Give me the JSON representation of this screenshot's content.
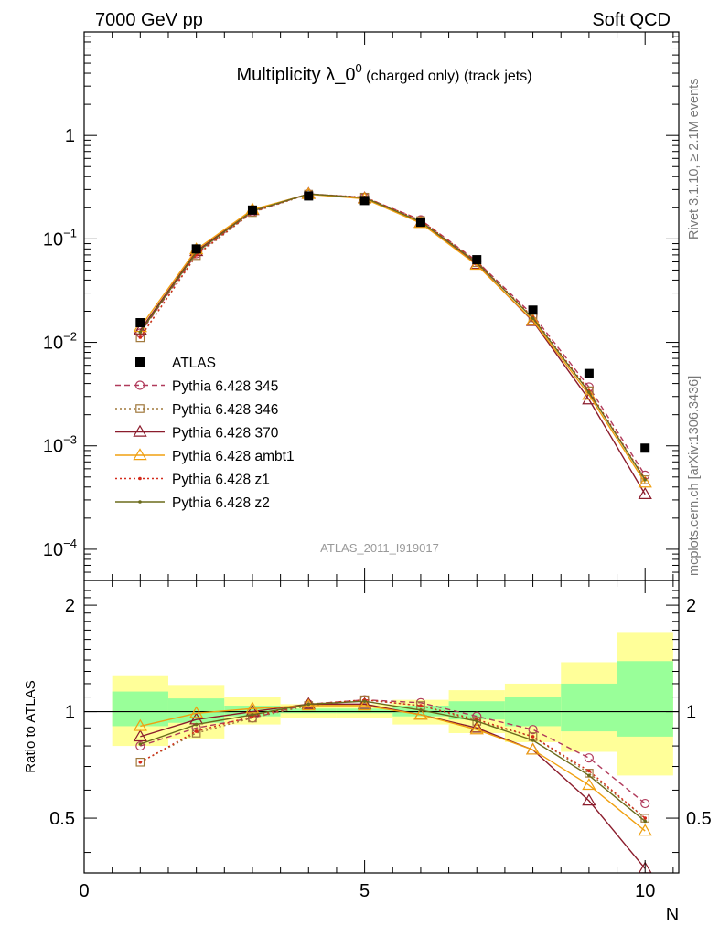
{
  "header": {
    "left": "7000 GeV pp",
    "right": "Soft QCD"
  },
  "side": {
    "rivet": "Rivet 3.1.10, ≥ 2.1M events",
    "mcplots": "mcplots.cern.ch [arXiv:1306.3436]"
  },
  "chart_data": [
    {
      "type": "line",
      "title": "Multiplicity λ_0",
      "title_sup": "0",
      "title_suffix": " (charged only) (track jets)",
      "watermark": "ATLAS_2011_I919017",
      "xlim": [
        0,
        10.6
      ],
      "ylim": [
        5e-05,
        10
      ],
      "yscale": "log",
      "ytick_labels": [
        {
          "base": "10",
          "exp": "−4",
          "value": 0.0001
        },
        {
          "base": "10",
          "exp": "−3",
          "value": 0.001
        },
        {
          "base": "10",
          "exp": "−2",
          "value": 0.01
        },
        {
          "base": "10",
          "exp": "−1",
          "value": 0.1
        },
        {
          "base": "1",
          "exp": "",
          "value": 1
        }
      ],
      "legend_position": "lower-left",
      "data": {
        "name": "ATLAS",
        "x": [
          1,
          2,
          3,
          4,
          5,
          6,
          7,
          8,
          9,
          10
        ],
        "y": [
          0.0155,
          0.08,
          0.19,
          0.26,
          0.235,
          0.145,
          0.063,
          0.0205,
          0.005,
          0.00095
        ]
      },
      "series": [
        {
          "name": "Pythia 6.428 345",
          "color": "#b03a5b",
          "dash": "dashed",
          "marker": "circle",
          "x": [
            1,
            2,
            3,
            4,
            5,
            6,
            7,
            8,
            9,
            10
          ],
          "y": [
            0.0123,
            0.072,
            0.182,
            0.272,
            0.252,
            0.153,
            0.061,
            0.0183,
            0.0037,
            0.00052
          ]
        },
        {
          "name": "Pythia 6.428 346",
          "color": "#a0783c",
          "dash": "dotted",
          "marker": "square",
          "x": [
            1,
            2,
            3,
            4,
            5,
            6,
            7,
            8,
            9,
            10
          ],
          "y": [
            0.0111,
            0.069,
            0.18,
            0.27,
            0.253,
            0.15,
            0.059,
            0.0173,
            0.0034,
            0.00047
          ]
        },
        {
          "name": "Pythia 6.428 370",
          "color": "#8b1c2c",
          "dash": "solid",
          "marker": "triangle",
          "x": [
            1,
            2,
            3,
            4,
            5,
            6,
            7,
            8,
            9,
            10
          ],
          "y": [
            0.0131,
            0.076,
            0.189,
            0.272,
            0.247,
            0.143,
            0.057,
            0.016,
            0.0028,
            0.00034
          ]
        },
        {
          "name": "Pythia 6.428 ambt1",
          "color": "#f0a010",
          "dash": "solid",
          "marker": "triangle",
          "x": [
            1,
            2,
            3,
            4,
            5,
            6,
            7,
            8,
            9,
            10
          ],
          "y": [
            0.014,
            0.079,
            0.192,
            0.27,
            0.244,
            0.142,
            0.056,
            0.0163,
            0.0031,
            0.00044
          ]
        },
        {
          "name": "Pythia 6.428 z1",
          "color": "#d42a1a",
          "dash": "dotted",
          "marker": "dot",
          "x": [
            1,
            2,
            3,
            4,
            5,
            6,
            7,
            8,
            9,
            10
          ],
          "y": [
            0.0112,
            0.07,
            0.183,
            0.272,
            0.253,
            0.151,
            0.06,
            0.0175,
            0.0034,
            0.00048
          ]
        },
        {
          "name": "Pythia 6.428 z2",
          "color": "#6b6b1c",
          "dash": "solid",
          "marker": "dot",
          "x": [
            1,
            2,
            3,
            4,
            5,
            6,
            7,
            8,
            9,
            10
          ],
          "y": [
            0.0126,
            0.074,
            0.186,
            0.272,
            0.25,
            0.147,
            0.059,
            0.0171,
            0.0033,
            0.00047
          ]
        }
      ]
    },
    {
      "type": "line",
      "ylabel": "Ratio to ATLAS",
      "xlabel": "N",
      "xlim": [
        0,
        10.6
      ],
      "ylim": [
        0.35,
        2.35
      ],
      "yscale": "log",
      "xticks": [
        0,
        5,
        10
      ],
      "xtick_labels": [
        "0",
        "5",
        "10"
      ],
      "yticks": [
        0.5,
        1,
        2
      ],
      "ytick_labels": [
        "0.5",
        "1",
        "2"
      ],
      "bands": {
        "bin_edges": [
          0.5,
          1.5,
          2.5,
          3.5,
          4.5,
          5.5,
          6.5,
          7.5,
          8.5,
          9.5,
          10.5
        ],
        "yellow_low": [
          0.8,
          0.84,
          0.92,
          0.96,
          0.96,
          0.92,
          0.87,
          0.82,
          0.77,
          0.66
        ],
        "yellow_high": [
          1.26,
          1.19,
          1.1,
          1.05,
          1.05,
          1.08,
          1.15,
          1.2,
          1.38,
          1.68
        ],
        "green_low": [
          0.91,
          0.93,
          0.97,
          0.99,
          0.99,
          0.97,
          0.95,
          0.91,
          0.88,
          0.85
        ],
        "green_high": [
          1.14,
          1.09,
          1.04,
          1.02,
          1.02,
          1.04,
          1.07,
          1.1,
          1.2,
          1.39
        ]
      },
      "series": [
        {
          "name": "Pythia 6.428 345",
          "x": [
            1,
            2,
            3,
            4,
            5,
            6,
            7,
            8,
            9,
            10
          ],
          "y": [
            0.8,
            0.9,
            0.96,
            1.05,
            1.08,
            1.06,
            0.97,
            0.89,
            0.74,
            0.55
          ]
        },
        {
          "name": "Pythia 6.428 346",
          "x": [
            1,
            2,
            3,
            4,
            5,
            6,
            7,
            8,
            9,
            10
          ],
          "y": [
            0.72,
            0.87,
            0.96,
            1.04,
            1.08,
            1.04,
            0.94,
            0.85,
            0.67,
            0.5
          ]
        },
        {
          "name": "Pythia 6.428 370",
          "x": [
            1,
            2,
            3,
            4,
            5,
            6,
            7,
            8,
            9,
            10
          ],
          "y": [
            0.85,
            0.95,
            1.0,
            1.05,
            1.05,
            0.98,
            0.9,
            0.78,
            0.56,
            0.36
          ]
        },
        {
          "name": "Pythia 6.428 ambt1",
          "x": [
            1,
            2,
            3,
            4,
            5,
            6,
            7,
            8,
            9,
            10
          ],
          "y": [
            0.91,
            0.99,
            1.02,
            1.04,
            1.04,
            0.98,
            0.89,
            0.78,
            0.62,
            0.46
          ]
        },
        {
          "name": "Pythia 6.428 z1",
          "x": [
            1,
            2,
            3,
            4,
            5,
            6,
            7,
            8,
            9,
            10
          ],
          "y": [
            0.72,
            0.88,
            0.97,
            1.05,
            1.08,
            1.04,
            0.95,
            0.85,
            0.68,
            0.5
          ]
        },
        {
          "name": "Pythia 6.428 z2",
          "x": [
            1,
            2,
            3,
            4,
            5,
            6,
            7,
            8,
            9,
            10
          ],
          "y": [
            0.81,
            0.92,
            0.98,
            1.05,
            1.07,
            1.01,
            0.94,
            0.83,
            0.66,
            0.49
          ]
        }
      ]
    }
  ]
}
